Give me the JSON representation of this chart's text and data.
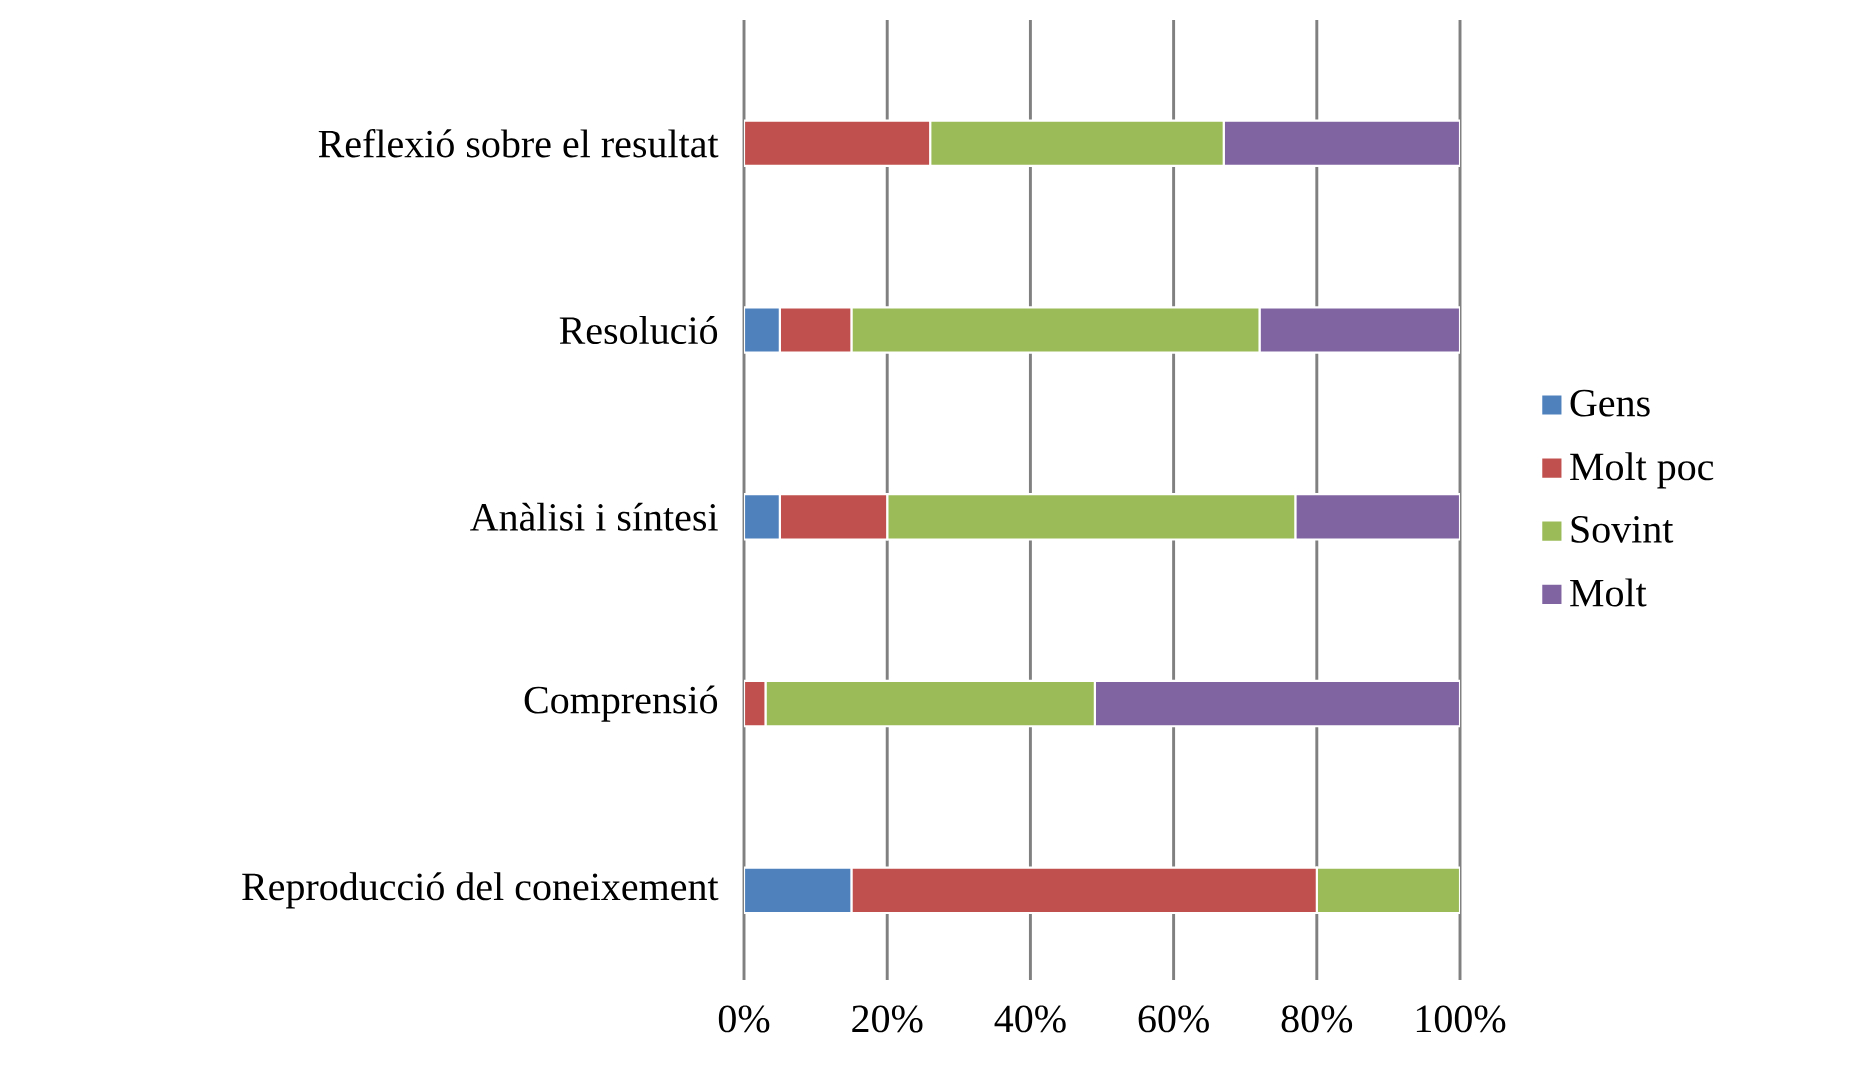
{
  "chart_data": {
    "type": "bar",
    "orientation": "horizontal",
    "stacked": true,
    "categories": [
      "Reflexió sobre el resultat",
      "Resolució",
      "Anàlisi i síntesi",
      "Comprensió",
      "Reproducció del coneixement"
    ],
    "series": [
      {
        "name": "Gens",
        "color": "#4f81bd",
        "values": [
          0,
          5,
          5,
          0,
          15
        ]
      },
      {
        "name": "Molt poc",
        "color": "#c0504d",
        "values": [
          26,
          10,
          15,
          3,
          65
        ]
      },
      {
        "name": "Sovint",
        "color": "#9bbb59",
        "values": [
          41,
          57,
          57,
          46,
          20
        ]
      },
      {
        "name": "Molt",
        "color": "#8064a2",
        "values": [
          33,
          28,
          23,
          51,
          0
        ]
      }
    ],
    "xlim": [
      0,
      100
    ],
    "xticks": [
      {
        "value": 0,
        "label": "0%"
      },
      {
        "value": 20,
        "label": "20%"
      },
      {
        "value": 40,
        "label": "40%"
      },
      {
        "value": 60,
        "label": "60%"
      },
      {
        "value": 80,
        "label": "80%"
      },
      {
        "value": 100,
        "label": "100%"
      }
    ],
    "grid": "x",
    "legend": "right"
  }
}
